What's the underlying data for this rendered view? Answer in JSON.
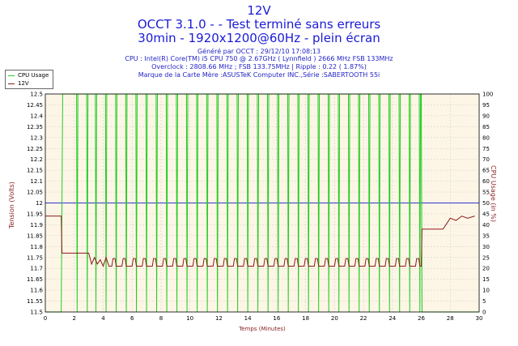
{
  "header": {
    "title": "12V",
    "subtitle": "OCCT 3.1.0 -  - Test terminé sans erreurs",
    "mode": "30min - 1920x1200@60Hz - plein écran",
    "generated": "Généré par OCCT : 29/12/10 17:08:13",
    "cpu": "CPU : Intel(R) Core(TM) i5 CPU 750 @ 2.67GHz ( Lynnfield ) 2666 MHz FSB 133MHz",
    "overclock": "Overclock : 2808.66 MHz ; FSB 133.75MHz | Ripple : 0.22 ( 1.87%)",
    "board": "Marque de la Carte Mère :ASUSTeK Computer INC.,Série :SABERTOOTH 55i"
  },
  "legend": {
    "cpu": "CPU Usage",
    "v12": "12V"
  },
  "colors": {
    "cpu": "#22cc22",
    "voltage": "#8b1a1a",
    "plot_bg": "#fdf6e6",
    "grid": "#cccccc",
    "ref": "#3333cc",
    "title": "#1a1ad6"
  },
  "chart_data": {
    "type": "line",
    "xlabel": "Temps (Minutes)",
    "ylabel_left": "Tension (Volts)",
    "ylabel_right": "CPU Usage (in %)",
    "xlim": [
      0,
      30
    ],
    "ylim_left": [
      11.5,
      12.5
    ],
    "ylim_right": [
      0,
      100
    ],
    "x_ticks": [
      0,
      2,
      4,
      6,
      8,
      10,
      12,
      14,
      16,
      18,
      20,
      22,
      24,
      26,
      28,
      30
    ],
    "y_ticks_left": [
      "11.5",
      "11.55",
      "11.6",
      "11.65",
      "11.7",
      "11.75",
      "11.8",
      "11.85",
      "11.9",
      "11.95",
      "12",
      "12.05",
      "12.1",
      "12.15",
      "12.2",
      "12.25",
      "12.3",
      "12.35",
      "12.4",
      "12.45",
      "12.5"
    ],
    "y_ticks_right": [
      0,
      5,
      10,
      15,
      20,
      25,
      30,
      35,
      40,
      45,
      50,
      55,
      60,
      65,
      70,
      75,
      80,
      85,
      90,
      95,
      100
    ],
    "reference_line_v": 12.0,
    "grid": true,
    "series": [
      {
        "name": "12V",
        "axis": "left",
        "x": [
          0,
          1.1,
          1.15,
          3.0,
          3.2,
          3.4,
          3.6,
          3.8,
          4.0,
          4.2,
          4.4,
          26.0,
          26.05,
          27.5,
          27.8,
          28.0,
          28.4,
          28.8,
          29.2,
          29.7
        ],
        "values": [
          11.94,
          11.94,
          11.77,
          11.77,
          11.72,
          11.75,
          11.72,
          11.74,
          11.71,
          11.75,
          11.71,
          11.71,
          11.88,
          11.88,
          11.91,
          11.93,
          11.92,
          11.94,
          11.93,
          11.94
        ],
        "oscillation": {
          "from": 4.4,
          "to": 26.0,
          "period_min": 0.7,
          "low": 11.71,
          "high": 11.745
        }
      },
      {
        "name": "CPU Usage",
        "axis": "right",
        "x": [
          0,
          1.1,
          1.2,
          1.9,
          26.0,
          26.05,
          30
        ],
        "values": [
          0,
          0,
          100,
          100,
          100,
          0,
          0
        ],
        "dips_to_zero_at": [
          2.2,
          2.9,
          3.5,
          4.2,
          4.9,
          5.6,
          6.3,
          7.0,
          7.7,
          8.4,
          9.1,
          9.8,
          10.5,
          11.2,
          11.9,
          12.6,
          13.3,
          14.0,
          14.7,
          15.4,
          16.1,
          16.8,
          17.5,
          18.2,
          18.9,
          19.6,
          20.3,
          21.0,
          21.7,
          22.4,
          23.1,
          23.8,
          24.5,
          25.2,
          25.9
        ]
      }
    ]
  }
}
